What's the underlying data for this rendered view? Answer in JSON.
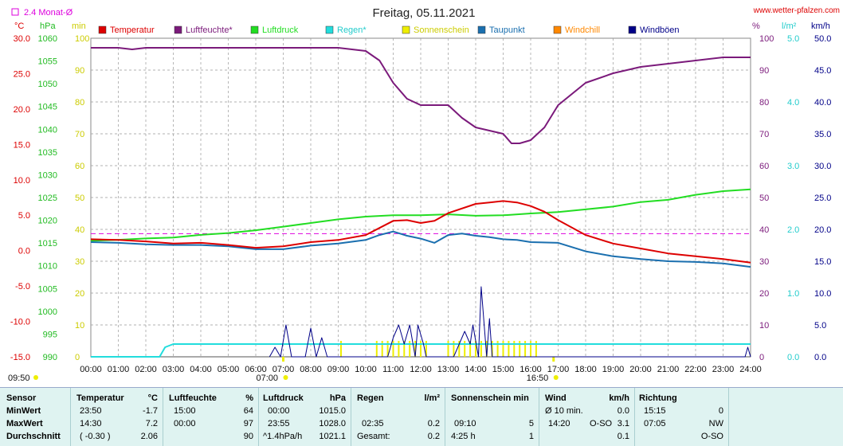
{
  "header": {
    "title": "Freitag, 05.11.2021",
    "site": "www.wetter-pfalzen.com",
    "avg_label": "2.4 Monat-Ø",
    "unit_c": "°C",
    "unit_hpa": "hPa",
    "unit_min": "min",
    "unit_pct": "%",
    "unit_lm2": "l/m²",
    "unit_kmh": "km/h"
  },
  "colors": {
    "temperature": "#dd0000",
    "humidity": "#7b1a7b",
    "pressure": "#22dd22",
    "rain": "#22dddd",
    "sunshine": "#eeee00",
    "dewpoint": "#1a6faf",
    "windchill": "#ff8800",
    "gusts": "#000088",
    "avg_line": "#dd00dd"
  },
  "legend": [
    {
      "label": "Temperatur",
      "color": "#dd0000"
    },
    {
      "label": "Luftfeuchte*",
      "color": "#7b1a7b"
    },
    {
      "label": "Luftdruck",
      "color": "#22dd22"
    },
    {
      "label": "Regen*",
      "color": "#22dddd"
    },
    {
      "label": "Sonnenschein",
      "color": "#eeee00"
    },
    {
      "label": "Taupunkt",
      "color": "#1a6faf"
    },
    {
      "label": "Windchill",
      "color": "#ff8800"
    },
    {
      "label": "Windböen",
      "color": "#000088"
    }
  ],
  "chart_data": {
    "type": "line",
    "title": "Freitag, 05.11.2021",
    "x_labels": [
      "00:00",
      "01:00",
      "02:00",
      "03:00",
      "04:00",
      "05:00",
      "06:00",
      "07:00",
      "08:00",
      "09:00",
      "10:00",
      "11:00",
      "12:00",
      "13:00",
      "14:00",
      "15:00",
      "16:00",
      "17:00",
      "18:00",
      "19:00",
      "20:00",
      "21:00",
      "22:00",
      "23:00",
      "24:00"
    ],
    "sunrise": "07:00",
    "sunset": "16:50",
    "left_axis_markers": {
      "start": "09:50"
    },
    "axes": {
      "temperature_c": {
        "range": [
          -15,
          30
        ],
        "ticks": [
          "30.0",
          "25.0",
          "20.0",
          "15.0",
          "10.0",
          "5.0",
          "0.0",
          "-5.0",
          "-10.0",
          "-15.0"
        ]
      },
      "pressure_hpa": {
        "range": [
          990,
          1060
        ],
        "ticks": [
          "1060",
          "1055",
          "1050",
          "1045",
          "1040",
          "1035",
          "1030",
          "1025",
          "1020",
          "1015",
          "1010",
          "1005",
          "1000",
          "995",
          "990"
        ]
      },
      "sunshine_min": {
        "range": [
          0,
          100
        ],
        "ticks": [
          "100",
          "90",
          "80",
          "70",
          "60",
          "50",
          "40",
          "30",
          "20",
          "10",
          "0"
        ]
      },
      "humidity_pct": {
        "range": [
          0,
          100
        ],
        "ticks": [
          "100",
          "90",
          "80",
          "70",
          "60",
          "50",
          "40",
          "30",
          "20",
          "10",
          "0"
        ]
      },
      "rain_lm2": {
        "range": [
          0,
          5
        ],
        "ticks": [
          "5.0",
          "4.0",
          "3.0",
          "2.0",
          "1.0",
          "0.0"
        ]
      },
      "wind_kmh": {
        "range": [
          0,
          50
        ],
        "ticks": [
          "50.0",
          "45.0",
          "40.0",
          "35.0",
          "30.0",
          "25.0",
          "20.0",
          "15.0",
          "10.0",
          "5.0",
          "0.0"
        ]
      }
    },
    "month_average_temp": 2.4,
    "series": [
      {
        "name": "Temperatur",
        "unit": "°C",
        "points": [
          [
            0,
            1.6
          ],
          [
            1,
            1.5
          ],
          [
            2,
            1.3
          ],
          [
            3,
            1.0
          ],
          [
            4,
            1.1
          ],
          [
            5,
            0.8
          ],
          [
            6,
            0.4
          ],
          [
            7,
            0.6
          ],
          [
            8,
            1.2
          ],
          [
            9,
            1.5
          ],
          [
            10,
            2.2
          ],
          [
            10.5,
            3.2
          ],
          [
            11,
            4.2
          ],
          [
            11.5,
            4.3
          ],
          [
            12,
            3.9
          ],
          [
            12.5,
            4.2
          ],
          [
            13,
            5.3
          ],
          [
            14,
            6.6
          ],
          [
            14.5,
            6.8
          ],
          [
            15,
            7.0
          ],
          [
            15.5,
            6.8
          ],
          [
            16,
            6.3
          ],
          [
            16.5,
            5.5
          ],
          [
            17,
            4.3
          ],
          [
            18,
            2.2
          ],
          [
            19,
            1.0
          ],
          [
            20,
            0.3
          ],
          [
            21,
            -0.4
          ],
          [
            22,
            -0.8
          ],
          [
            23,
            -1.2
          ],
          [
            24,
            -1.7
          ]
        ]
      },
      {
        "name": "Luftfeuchte*",
        "unit": "%",
        "points": [
          [
            0,
            97
          ],
          [
            1,
            97
          ],
          [
            1.5,
            96.5
          ],
          [
            2,
            97
          ],
          [
            3,
            97
          ],
          [
            4,
            97
          ],
          [
            5,
            97
          ],
          [
            6,
            97
          ],
          [
            7,
            97
          ],
          [
            8,
            97
          ],
          [
            9,
            97
          ],
          [
            10,
            96
          ],
          [
            10.5,
            93
          ],
          [
            11,
            86
          ],
          [
            11.5,
            81
          ],
          [
            12,
            79
          ],
          [
            13,
            79
          ],
          [
            13.5,
            75
          ],
          [
            14,
            72
          ],
          [
            14.5,
            71
          ],
          [
            15,
            70
          ],
          [
            15.3,
            67
          ],
          [
            15.6,
            67
          ],
          [
            16,
            68
          ],
          [
            16.5,
            72
          ],
          [
            17,
            79
          ],
          [
            18,
            86
          ],
          [
            19,
            89
          ],
          [
            20,
            91
          ],
          [
            21,
            92
          ],
          [
            22,
            93
          ],
          [
            23,
            94
          ],
          [
            24,
            94
          ]
        ]
      },
      {
        "name": "Luftdruck",
        "unit": "hPa",
        "points": [
          [
            0,
            1015.5
          ],
          [
            1,
            1015.7
          ],
          [
            2,
            1016.0
          ],
          [
            3,
            1016.2
          ],
          [
            4,
            1016.8
          ],
          [
            5,
            1017.2
          ],
          [
            6,
            1017.8
          ],
          [
            7,
            1018.6
          ],
          [
            8,
            1019.4
          ],
          [
            9,
            1020.2
          ],
          [
            10,
            1020.8
          ],
          [
            11,
            1021.1
          ],
          [
            12,
            1021.1
          ],
          [
            13,
            1021.3
          ],
          [
            14,
            1021.0
          ],
          [
            15,
            1021.1
          ],
          [
            16,
            1021.5
          ],
          [
            17,
            1021.8
          ],
          [
            18,
            1022.4
          ],
          [
            19,
            1023.0
          ],
          [
            20,
            1024.0
          ],
          [
            21,
            1024.5
          ],
          [
            22,
            1025.6
          ],
          [
            23,
            1026.4
          ],
          [
            24,
            1026.8
          ]
        ]
      },
      {
        "name": "Regen*",
        "unit": "l/m²",
        "points": [
          [
            0,
            0
          ],
          [
            2.5,
            0
          ],
          [
            2.7,
            0.15
          ],
          [
            3,
            0.2
          ],
          [
            24,
            0.2
          ]
        ]
      },
      {
        "name": "Taupunkt",
        "unit": "°C",
        "points": [
          [
            0,
            1.2
          ],
          [
            1,
            1.1
          ],
          [
            2,
            0.9
          ],
          [
            3,
            0.8
          ],
          [
            4,
            0.8
          ],
          [
            5,
            0.6
          ],
          [
            6,
            0.2
          ],
          [
            7,
            0.2
          ],
          [
            8,
            0.7
          ],
          [
            9,
            1.0
          ],
          [
            10,
            1.5
          ],
          [
            10.5,
            2.2
          ],
          [
            11,
            2.7
          ],
          [
            11.5,
            2.1
          ],
          [
            12,
            1.7
          ],
          [
            12.5,
            1.1
          ],
          [
            13,
            2.2
          ],
          [
            13.5,
            2.4
          ],
          [
            14,
            2.1
          ],
          [
            14.5,
            1.9
          ],
          [
            15,
            1.6
          ],
          [
            15.5,
            1.5
          ],
          [
            16,
            1.2
          ],
          [
            17,
            1.1
          ],
          [
            18,
            -0.1
          ],
          [
            19,
            -0.8
          ],
          [
            20,
            -1.2
          ],
          [
            21,
            -1.5
          ],
          [
            22,
            -1.6
          ],
          [
            23,
            -1.8
          ],
          [
            24,
            -2.3
          ]
        ]
      },
      {
        "name": "Windböen",
        "unit": "km/h",
        "points": [
          [
            6.5,
            0
          ],
          [
            6.7,
            1.5
          ],
          [
            6.9,
            0
          ],
          [
            7.1,
            5
          ],
          [
            7.3,
            0
          ],
          [
            7.8,
            0
          ],
          [
            8.0,
            4.5
          ],
          [
            8.2,
            0
          ],
          [
            8.4,
            3
          ],
          [
            8.6,
            0
          ],
          [
            10.8,
            0
          ],
          [
            11.0,
            3
          ],
          [
            11.2,
            5
          ],
          [
            11.4,
            2
          ],
          [
            11.6,
            5
          ],
          [
            11.8,
            0
          ],
          [
            11.9,
            5
          ],
          [
            12.1,
            2
          ],
          [
            12.2,
            0
          ],
          [
            13.2,
            0
          ],
          [
            13.4,
            2
          ],
          [
            13.6,
            4
          ],
          [
            13.8,
            2
          ],
          [
            13.9,
            5
          ],
          [
            14.1,
            0
          ],
          [
            14.2,
            11
          ],
          [
            14.4,
            0
          ],
          [
            14.5,
            6
          ],
          [
            14.6,
            0
          ],
          [
            23.8,
            0
          ],
          [
            23.9,
            1.5
          ],
          [
            24,
            0
          ]
        ]
      }
    ],
    "sunshine_bars": [
      [
        10.4,
        5
      ],
      [
        10.6,
        5
      ],
      [
        10.8,
        5
      ],
      [
        11.0,
        5
      ],
      [
        11.2,
        5
      ],
      [
        11.4,
        5
      ],
      [
        11.6,
        5
      ],
      [
        11.8,
        5
      ],
      [
        12.0,
        5
      ],
      [
        12.2,
        5
      ],
      [
        13.0,
        5
      ],
      [
        13.2,
        5
      ],
      [
        13.4,
        5
      ],
      [
        13.6,
        5
      ],
      [
        13.8,
        5
      ],
      [
        14.0,
        5
      ],
      [
        14.2,
        5
      ],
      [
        14.4,
        5
      ],
      [
        14.6,
        5
      ],
      [
        14.8,
        5
      ],
      [
        15.0,
        5
      ],
      [
        15.2,
        5
      ],
      [
        15.4,
        5
      ],
      [
        15.6,
        5
      ],
      [
        15.8,
        5
      ],
      [
        16.0,
        5
      ],
      [
        16.2,
        5
      ],
      [
        9.1,
        5
      ]
    ]
  },
  "stats": {
    "sensor": {
      "head": "Sensor",
      "rows": [
        "MinWert",
        "MaxWert",
        "Durchschnitt"
      ]
    },
    "temp": {
      "head": "Temperatur",
      "unit": "°C",
      "times": [
        "23:50",
        "14:30",
        "( -0.30 )"
      ],
      "values": [
        "-1.7",
        "7.2",
        "2.06"
      ]
    },
    "humidity": {
      "head": "Luftfeuchte",
      "unit": "%",
      "times": [
        "15:00",
        "00:00",
        ""
      ],
      "values": [
        "64",
        "97",
        "90"
      ]
    },
    "pressure": {
      "head": "Luftdruck",
      "unit": "hPa",
      "times": [
        "00:00",
        "23:55",
        "^1.4hPa/h"
      ],
      "values": [
        "1015.0",
        "1028.0",
        "1021.1"
      ]
    },
    "rain": {
      "head": "Regen",
      "unit": "l/m²",
      "times": [
        "",
        "02:35",
        "Gesamt:"
      ],
      "values": [
        "",
        "0.2",
        "0.2"
      ]
    },
    "sun": {
      "head": "Sonnenschein min",
      "times": [
        "",
        "09:10",
        "4:25 h"
      ],
      "values": [
        "",
        "5",
        "1"
      ]
    },
    "wind": {
      "head": "Wind",
      "unit": "km/h",
      "times": [
        "Ø 10 min.",
        "14:20",
        ""
      ],
      "dirs": [
        "",
        "O-SO",
        ""
      ],
      "values": [
        "0.0",
        "3.1",
        "0.1"
      ]
    },
    "direction": {
      "head": "Richtung",
      "times": [
        "15:15",
        "07:05",
        ""
      ],
      "values": [
        "0",
        "NW",
        "O-SO"
      ]
    }
  }
}
